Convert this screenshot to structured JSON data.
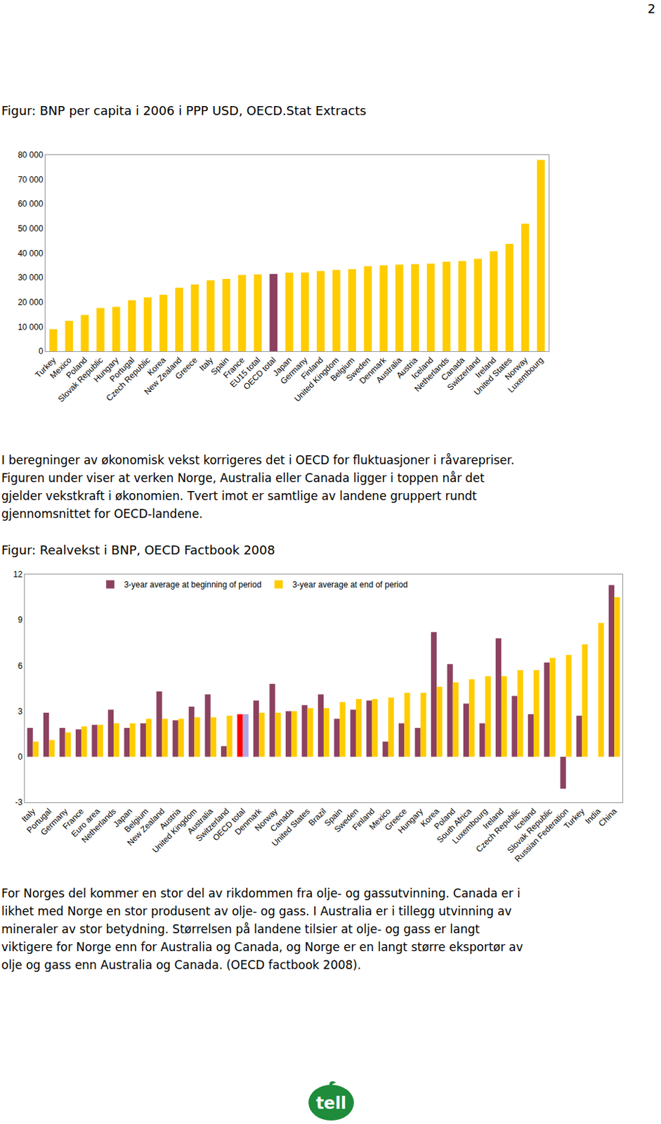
{
  "page_number": "2",
  "paragraphs": [
    [
      "I beregninger av økonomisk vekst korrigeres det i OECD for fluktuasjoner i råvarepriser.",
      "Figuren under viser at verken Norge, Australia eller Canada ligger i toppen når det",
      "gjelder vekstkraft i økonomien. Tvert imot er samtlige av landene gruppert rundt",
      "gjennomsnittet for OECD-landene."
    ],
    [
      "For Norges del kommer en stor del av rikdommen fra olje- og gassutvinning. Canada er i",
      "likhet med Norge en stor produsent av olje- og gass. I Australia er i tillegg utvinning av",
      "mineraler av stor betydning. Størrelsen på landene tilsier at olje- og gass er langt",
      "viktigere for Norge enn for Australia og Canada, og Norge er en langt større eksportør av",
      "olje og gass enn Australia og Canada.  (OECD factbook 2008)."
    ]
  ],
  "logo_text": "tell",
  "chart_data": [
    {
      "type": "bar",
      "title": "Figur: BNP per capita i 2006 i PPP USD, OECD.Stat Extracts",
      "categories": [
        "Turkey",
        "Mexico",
        "Poland",
        "Slovak Republic",
        "Hungary",
        "Portugal",
        "Czech Republic",
        "Korea",
        "New Zealand",
        "Greece",
        "Italy",
        "Spain",
        "France",
        "EU15 total",
        "OECD total",
        "Japan",
        "Germany",
        "Finland",
        "United Kingdom",
        "Belgium",
        "Sweden",
        "Denmark",
        "Australia",
        "Austria",
        "Iceland",
        "Netherlands",
        "Canada",
        "Switzerland",
        "Ireland",
        "United States",
        "Norway",
        "Luxembourg"
      ],
      "values": [
        9000,
        12400,
        14800,
        17600,
        18100,
        20800,
        22000,
        23000,
        25900,
        27200,
        28900,
        29500,
        31100,
        31300,
        31500,
        32000,
        32100,
        32700,
        33100,
        33500,
        34700,
        35000,
        35300,
        35500,
        35700,
        36500,
        36800,
        37700,
        40800,
        43800,
        52000,
        78000
      ],
      "colors": [
        "#FFCC00",
        "#FFCC00",
        "#FFCC00",
        "#FFCC00",
        "#FFCC00",
        "#FFCC00",
        "#FFCC00",
        "#FFCC00",
        "#FFCC00",
        "#FFCC00",
        "#FFCC00",
        "#FFCC00",
        "#FFCC00",
        "#FFCC00",
        "#8C4160",
        "#FFCC00",
        "#FFCC00",
        "#FFCC00",
        "#FFCC00",
        "#FFCC00",
        "#FFCC00",
        "#FFCC00",
        "#FFCC00",
        "#FFCC00",
        "#FFCC00",
        "#FFCC00",
        "#FFCC00",
        "#FFCC00",
        "#FFCC00",
        "#FFCC00",
        "#FFCC00",
        "#FFCC00"
      ],
      "ylim": [
        0,
        80000
      ],
      "yticks": [
        0,
        {
          "value": 10000,
          "label": "10 000"
        },
        {
          "value": 20000,
          "label": "20 000"
        },
        {
          "value": 30000,
          "label": "30 000"
        },
        {
          "value": 40000,
          "label": "40 000"
        },
        {
          "value": 50000,
          "label": "50 000"
        },
        {
          "value": 60000,
          "label": "60 000"
        },
        {
          "value": 70000,
          "label": "70 000"
        },
        {
          "value": 80000,
          "label": "80 000"
        }
      ],
      "grid": false
    },
    {
      "type": "bar",
      "title": "Figur: Realvekst i BNP, OECD Factbook 2008",
      "categories": [
        "Italy",
        "Portugal",
        "Germany",
        "France",
        "Euro area",
        "Netherlands",
        "Japan",
        "Belgium",
        "New Zealand",
        "Austria",
        "United Kingdom",
        "Australia",
        "Switzerland",
        "OECD total",
        "Denmark",
        "Norway",
        "Canada",
        "United States",
        "Brazil",
        "Spain",
        "Sweden",
        "Finland",
        "Mexico",
        "Greece",
        "Hungary",
        "Korea",
        "Poland",
        "South Africa",
        "Luxembourg",
        "Ireland",
        "Czech Republic",
        "Iceland",
        "Slovak Republic",
        "Russian Federation",
        "Turkey",
        "India",
        "China"
      ],
      "series": [
        {
          "name": "3-year average at beginning of period",
          "color": "#8C4160",
          "colors": [
            "#8C4160",
            "#8C4160",
            "#8C4160",
            "#8C4160",
            "#8C4160",
            "#8C4160",
            "#8C4160",
            "#8C4160",
            "#8C4160",
            "#8C4160",
            "#8C4160",
            "#8C4160",
            "#8C4160",
            "#FF0000",
            "#8C4160",
            "#8C4160",
            "#8C4160",
            "#8C4160",
            "#8C4160",
            "#8C4160",
            "#8C4160",
            "#8C4160",
            "#8C4160",
            "#8C4160",
            "#8C4160",
            "#8C4160",
            "#8C4160",
            "#8C4160",
            "#8C4160",
            "#8C4160",
            "#8C4160",
            "#8C4160",
            "#8C4160",
            "#8C4160",
            "#8C4160",
            "#8C4160",
            "#8C4160"
          ],
          "values": [
            1.9,
            2.9,
            1.9,
            1.8,
            2.1,
            3.1,
            1.9,
            2.2,
            4.3,
            2.4,
            3.3,
            4.1,
            0.7,
            2.8,
            3.7,
            4.8,
            3.0,
            3.4,
            4.1,
            2.5,
            3.1,
            3.7,
            1.0,
            2.2,
            1.9,
            8.2,
            6.1,
            3.5,
            2.2,
            7.8,
            4.0,
            2.8,
            6.2,
            -2.1,
            2.7,
            null,
            11.3
          ]
        },
        {
          "name": "3-year average at end of period",
          "color": "#FFCC00",
          "colors": [
            "#FFCC00",
            "#FFCC00",
            "#FFCC00",
            "#FFCC00",
            "#FFCC00",
            "#FFCC00",
            "#FFCC00",
            "#FFCC00",
            "#FFCC00",
            "#FFCC00",
            "#FFCC00",
            "#FFCC00",
            "#FFCC00",
            "#B3A6E6",
            "#FFCC00",
            "#FFCC00",
            "#FFCC00",
            "#FFCC00",
            "#FFCC00",
            "#FFCC00",
            "#FFCC00",
            "#FFCC00",
            "#FFCC00",
            "#FFCC00",
            "#FFCC00",
            "#FFCC00",
            "#FFCC00",
            "#FFCC00",
            "#FFCC00",
            "#FFCC00",
            "#FFCC00",
            "#FFCC00",
            "#FFCC00",
            "#FFCC00",
            "#FFCC00",
            "#FFCC00",
            "#FFCC00"
          ],
          "values": [
            1.0,
            1.1,
            1.6,
            2.0,
            2.1,
            2.2,
            2.2,
            2.5,
            2.5,
            2.5,
            2.6,
            2.6,
            2.7,
            2.8,
            2.9,
            2.9,
            3.0,
            3.2,
            3.2,
            3.6,
            3.8,
            3.8,
            3.9,
            4.2,
            4.2,
            4.6,
            4.9,
            5.1,
            5.3,
            5.3,
            5.7,
            5.7,
            6.5,
            6.7,
            7.4,
            8.8,
            10.5
          ]
        }
      ],
      "ylim": [
        -3,
        12
      ],
      "yticks": [
        -3,
        0,
        3,
        6,
        9,
        12
      ],
      "grid": false,
      "legend": "top"
    }
  ]
}
